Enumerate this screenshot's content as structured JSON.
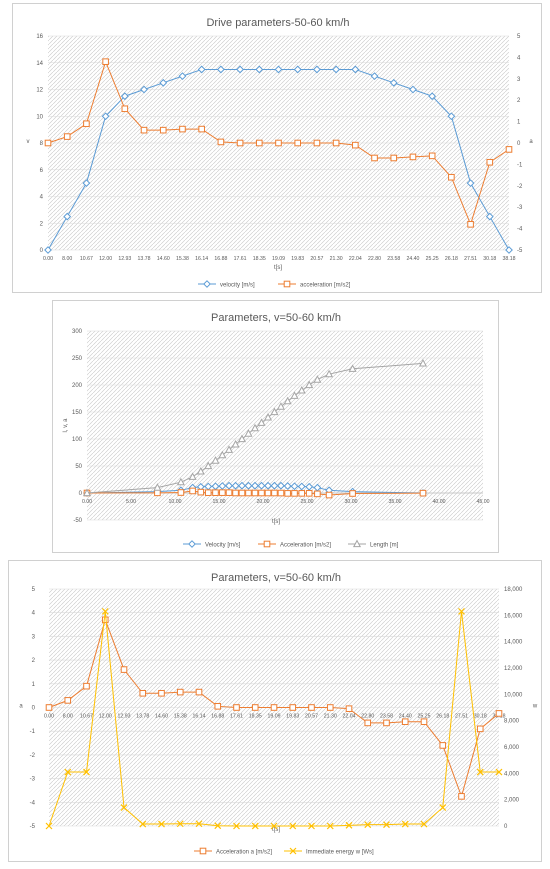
{
  "chart_data": [
    {
      "type": "line",
      "title": "Drive parameters-50-60 km/h",
      "xlabel": "t[s]",
      "ylabel": "v",
      "y2label": "a",
      "categories": [
        "0.00",
        "8.00",
        "10.67",
        "12.00",
        "12.93",
        "13.78",
        "14.60",
        "15.38",
        "16.14",
        "16.88",
        "17.61",
        "18.35",
        "19.09",
        "19.83",
        "20.57",
        "21.30",
        "22.04",
        "22.80",
        "23.58",
        "24.40",
        "25.25",
        "26.18",
        "27.51",
        "30.18",
        "38.18"
      ],
      "ylim": [
        0,
        16
      ],
      "yticks": [
        0,
        2,
        4,
        6,
        8,
        10,
        12,
        14,
        16
      ],
      "y2lim": [
        -5,
        5
      ],
      "y2ticks": [
        -5,
        -4,
        -3,
        -2,
        -1,
        0,
        1,
        2,
        3,
        4,
        5
      ],
      "grid": true,
      "legend": "bottom",
      "series": [
        {
          "name": "velocity [m/s]",
          "axis": "left",
          "marker": "diamond",
          "color": "#5b9bd5",
          "values": [
            0,
            2.5,
            5,
            10,
            11.5,
            12,
            12.5,
            13,
            13.5,
            13.5,
            13.5,
            13.5,
            13.5,
            13.5,
            13.5,
            13.5,
            13.5,
            13,
            12.5,
            12,
            11.5,
            10,
            5,
            2.5,
            0
          ]
        },
        {
          "name": "acceleration [m/s2]",
          "axis": "right",
          "marker": "square",
          "color": "#ed7d31",
          "values": [
            0,
            0.3,
            0.9,
            3.8,
            1.6,
            0.6,
            0.6,
            0.65,
            0.65,
            0.05,
            0,
            0,
            0,
            0,
            0,
            0,
            -0.1,
            -0.7,
            -0.7,
            -0.65,
            -0.6,
            -1.6,
            -3.8,
            -0.9,
            -0.3
          ]
        }
      ]
    },
    {
      "type": "scatter",
      "title": "Parameters, v=50-60 km/h",
      "xlabel": "t[s]",
      "ylabel": "l, v, a",
      "xlim": [
        0,
        45
      ],
      "xticks": [
        0,
        5,
        10,
        15,
        20,
        25,
        30,
        35,
        40,
        45
      ],
      "xtick_labels": [
        "0.00",
        "5.00",
        "10.00",
        "15.00",
        "20.00",
        "25.00",
        "30.00",
        "35.00",
        "40.00",
        "45.00"
      ],
      "ylim": [
        -50,
        300
      ],
      "yticks": [
        -50,
        0,
        50,
        100,
        150,
        200,
        250,
        300
      ],
      "grid": true,
      "legend": "bottom",
      "x": [
        0,
        8,
        10.67,
        12,
        12.93,
        13.78,
        14.6,
        15.38,
        16.14,
        16.88,
        17.61,
        18.35,
        19.09,
        19.83,
        20.57,
        21.3,
        22.04,
        22.8,
        23.58,
        24.4,
        25.25,
        26.18,
        27.51,
        30.18,
        38.18
      ],
      "series": [
        {
          "name": "Velocity [m/s]",
          "marker": "diamond",
          "color": "#5b9bd5",
          "values": [
            0,
            2.5,
            5,
            10,
            11.5,
            12,
            12.5,
            13,
            13.5,
            13.5,
            13.5,
            13.5,
            13.5,
            13.5,
            13.5,
            13.5,
            13.5,
            13,
            12.5,
            12,
            11.5,
            10,
            5,
            2.5,
            0
          ]
        },
        {
          "name": "Acceleration [m/s2]",
          "marker": "square",
          "color": "#ed7d31",
          "values": [
            0,
            0.3,
            0.9,
            3.8,
            1.6,
            0.6,
            0.6,
            0.65,
            0.65,
            0.05,
            0,
            0,
            0,
            0,
            0,
            0,
            -0.1,
            -0.7,
            -0.7,
            -0.65,
            -0.6,
            -1.6,
            -3.8,
            -0.9,
            -0.3
          ]
        },
        {
          "name": "Length [m]",
          "marker": "triangle",
          "color": "#a5a5a5",
          "values": [
            0,
            10,
            20,
            30,
            40,
            50,
            60,
            70,
            80,
            90,
            100,
            110,
            120,
            130,
            140,
            150,
            160,
            170,
            180,
            190,
            200,
            210,
            220,
            230,
            240
          ]
        }
      ]
    },
    {
      "type": "line",
      "title": "Parameters, v=50-60 km/h",
      "xlabel": "t[s]",
      "ylabel": "a",
      "y2label": "w",
      "categories": [
        "0.00",
        "8.00",
        "10.67",
        "12.00",
        "12.93",
        "13.78",
        "14.60",
        "15.38",
        "16.14",
        "16.88",
        "17.61",
        "18.35",
        "19.09",
        "19.83",
        "20.57",
        "21.30",
        "22.04",
        "22.80",
        "23.58",
        "24.40",
        "25.25",
        "26.18",
        "27.51",
        "30.18",
        "38.18"
      ],
      "ylim": [
        -5,
        5
      ],
      "yticks": [
        -5,
        -4,
        -3,
        -2,
        -1,
        0,
        1,
        2,
        3,
        4,
        5
      ],
      "y2lim": [
        0,
        18000
      ],
      "y2ticks": [
        0,
        2000,
        4000,
        6000,
        8000,
        10000,
        12000,
        14000,
        16000,
        18000
      ],
      "y2tick_labels": [
        "0",
        "2,000",
        "4,000",
        "6,000",
        "8,000",
        "10,000",
        "12,000",
        "14,000",
        "16,000",
        "18,000"
      ],
      "grid": true,
      "legend": "bottom",
      "series": [
        {
          "name": "Acceleration a [m/s2]",
          "axis": "left",
          "marker": "square",
          "color": "#ed7d31",
          "values": [
            0,
            0.3,
            0.9,
            3.7,
            1.6,
            0.6,
            0.6,
            0.65,
            0.65,
            0.05,
            0,
            0,
            0,
            0,
            0,
            0,
            -0.05,
            -0.65,
            -0.65,
            -0.6,
            -0.6,
            -1.6,
            -3.75,
            -0.9,
            -0.25
          ]
        },
        {
          "name": "Immediate energy w  [Ws]",
          "axis": "right",
          "marker": "x",
          "color": "#ffc000",
          "values": [
            0,
            4100,
            4100,
            16300,
            1400,
            150,
            150,
            170,
            170,
            20,
            0,
            0,
            0,
            0,
            0,
            0,
            50,
            100,
            100,
            150,
            150,
            1400,
            16300,
            4100,
            4100
          ]
        }
      ]
    }
  ]
}
